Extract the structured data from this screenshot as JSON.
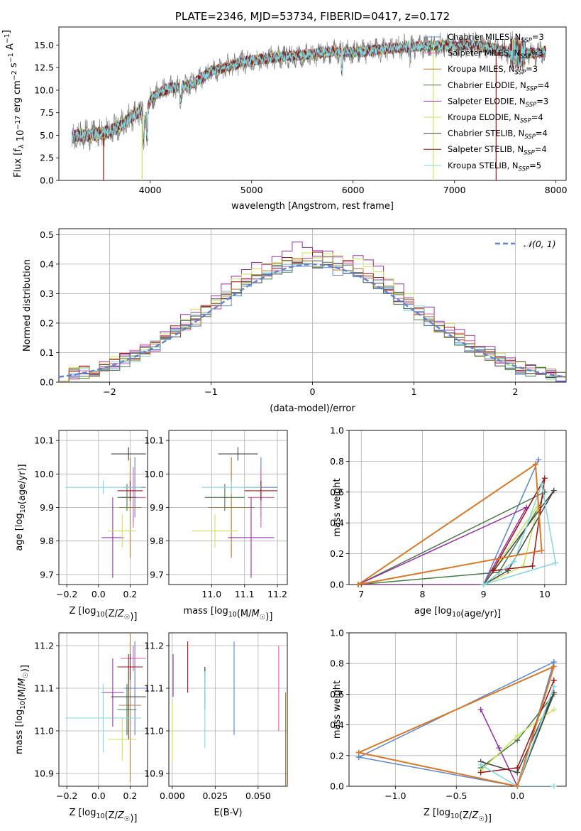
{
  "colors": {
    "Chabrier MILES": "#5b84d6",
    "Salpeter MILES": "#e05aa6",
    "Kroupa MILES": "#b07a30",
    "Chabrier ELODIE": "#4a7a4a",
    "Salpeter ELODIE": "#9b2fae",
    "Kroupa ELODIE": "#c8e65a",
    "Chabrier STELIB": "#444444",
    "Salpeter STELIB": "#a01010",
    "Kroupa STELIB": "#80d8e0",
    "sdss_spectrum": "#808080",
    "orange_series": "#e07820"
  },
  "chart_data": [
    {
      "type": "line",
      "title": "PLATE=2346, MJD=53734, FIBERID=0417, z=0.172",
      "xlabel": "wavelength [Angstrom, rest frame]",
      "ylabel": "Flux [f_λ 10^{-17} erg cm^{-2} s^{-1} A^{-1}]",
      "xlim": [
        3100,
        8100
      ],
      "ylim": [
        0,
        17
      ],
      "x_ticks": [
        4000,
        5000,
        6000,
        7000,
        8000
      ],
      "y_ticks": [
        0.0,
        2.5,
        5.0,
        7.5,
        10.0,
        12.5,
        15.0
      ],
      "grid": false,
      "legend_position": "top-right",
      "legend": [
        {
          "name": "Chabrier MILES",
          "nssp": "3"
        },
        {
          "name": "Salpeter MILES",
          "nssp": "3"
        },
        {
          "name": "Kroupa MILES",
          "nssp": "3"
        },
        {
          "name": "Chabrier ELODIE",
          "nssp": "4"
        },
        {
          "name": "Salpeter ELODIE",
          "nssp": "3"
        },
        {
          "name": "Kroupa ELODIE",
          "nssp": "4"
        },
        {
          "name": "Chabrier STELIB",
          "nssp": "4"
        },
        {
          "name": "Salpeter STELIB",
          "nssp": "4"
        },
        {
          "name": "Kroupa STELIB",
          "nssp": "5"
        }
      ],
      "spectrum_envelope": {
        "x": [
          3230,
          3300,
          3400,
          3500,
          3600,
          3700,
          3800,
          3900,
          3950,
          4000,
          4100,
          4200,
          4300,
          4400,
          4500,
          4600,
          4700,
          4800,
          4900,
          5000,
          5200,
          5400,
          5600,
          5800,
          6000,
          6200,
          6400,
          6600,
          6800,
          7000,
          7200,
          7400,
          7600,
          7800,
          7900
        ],
        "y": [
          4.8,
          5.0,
          5.0,
          5.2,
          5.4,
          6.0,
          6.9,
          7.7,
          6.5,
          9.0,
          9.8,
          10.3,
          10.3,
          10.6,
          11.3,
          12.1,
          12.4,
          12.7,
          13.1,
          13.3,
          13.6,
          13.8,
          14.0,
          14.3,
          14.2,
          14.4,
          14.7,
          14.8,
          14.9,
          14.9,
          15.0,
          14.6,
          14.0,
          14.1,
          14.3
        ]
      },
      "model_edges": [
        {
          "series": "Salpeter STELIB",
          "x": 3540
        },
        {
          "series": "Kroupa ELODIE",
          "x": 3920
        },
        {
          "series": "Kroupa ELODIE",
          "x": 6790
        },
        {
          "series": "Salpeter STELIB",
          "x": 7410
        }
      ]
    },
    {
      "type": "histogram",
      "xlabel": "(data-model)/error",
      "ylabel": "Normed distribution",
      "xlim": [
        -2.5,
        2.5
      ],
      "ylim": [
        0,
        0.52
      ],
      "x_ticks": [
        -2,
        -1,
        0,
        1,
        2
      ],
      "y_ticks": [
        0.0,
        0.1,
        0.2,
        0.3,
        0.4,
        0.5
      ],
      "grid": true,
      "legend_position": "top-right",
      "reference_curve": {
        "label": "𝒩(0, 1)",
        "mean": 0,
        "sigma": 1
      },
      "bin_width": 0.1,
      "bin_start": -2.5,
      "histogram_series": [
        {
          "series": "Salpeter ELODIE",
          "peak": 0.5
        },
        {
          "series": "Kroupa ELODIE",
          "peak": 0.48
        },
        {
          "series": "Salpeter STELIB",
          "peak": 0.46
        },
        {
          "series": "Kroupa STELIB",
          "peak": 0.45
        },
        {
          "series": "Salpeter MILES",
          "peak": 0.46
        },
        {
          "series": "Chabrier STELIB",
          "peak": 0.45
        },
        {
          "series": "Chabrier MILES",
          "peak": 0.43
        },
        {
          "series": "Chabrier ELODIE",
          "peak": 0.44
        },
        {
          "series": "Kroupa MILES",
          "peak": 0.45
        }
      ]
    },
    {
      "type": "errorbar",
      "xlabel": "Z [log10(Z/Z☉)]",
      "ylabel": "age  [log10(age/yr)]",
      "xlim": [
        -0.25,
        0.31
      ],
      "ylim": [
        9.67,
        10.13
      ],
      "x_ticks": [
        -0.2,
        0.0,
        0.2
      ],
      "x_tick_labels": [
        "−0.2",
        "0.0",
        "0.2"
      ],
      "y_ticks": [
        9.7,
        9.8,
        9.9,
        10.0,
        10.1
      ],
      "grid": true,
      "points": [
        {
          "series": "Chabrier MILES",
          "x": 0.23,
          "xerr": 0.07,
          "y": 9.96,
          "yerr": 0.09
        },
        {
          "series": "Salpeter MILES",
          "x": 0.22,
          "xerr": 0.08,
          "y": 9.93,
          "yerr": 0.09
        },
        {
          "series": "Kroupa MILES",
          "x": 0.2,
          "xerr": 0.07,
          "y": 9.9,
          "yerr": 0.15
        },
        {
          "series": "Chabrier ELODIE",
          "x": 0.18,
          "xerr": 0.06,
          "y": 9.93,
          "yerr": 0.04
        },
        {
          "series": "Salpeter ELODIE",
          "x": 0.09,
          "xerr": 0.07,
          "y": 9.81,
          "yerr": 0.12
        },
        {
          "series": "Kroupa ELODIE",
          "x": 0.15,
          "xerr": 0.09,
          "y": 9.83,
          "yerr": 0.05
        },
        {
          "series": "Chabrier STELIB",
          "x": 0.19,
          "xerr": 0.11,
          "y": 10.06,
          "yerr": 0.02
        },
        {
          "series": "Salpeter STELIB",
          "x": 0.2,
          "xerr": 0.08,
          "y": 9.95,
          "yerr": 0.03
        },
        {
          "series": "Kroupa STELIB",
          "x": 0.03,
          "xerr": 0.24,
          "y": 9.96,
          "yerr": 0.02
        }
      ]
    },
    {
      "type": "errorbar",
      "xlabel": "mass [log10(M/M☉)]",
      "ylabel": "",
      "xlim": [
        10.87,
        11.23
      ],
      "ylim": [
        9.67,
        10.13
      ],
      "x_ticks": [
        11.0,
        11.1,
        11.2
      ],
      "y_ticks": [
        9.7,
        9.8,
        9.9,
        10.0,
        10.1
      ],
      "grid": true,
      "points": [
        {
          "series": "Chabrier MILES",
          "x": 11.15,
          "xerr": 0.05,
          "y": 9.96,
          "yerr": 0.09
        },
        {
          "series": "Salpeter MILES",
          "x": 11.15,
          "xerr": 0.04,
          "y": 9.93,
          "yerr": 0.09
        },
        {
          "series": "Kroupa MILES",
          "x": 11.06,
          "xerr": 0.07,
          "y": 9.9,
          "yerr": 0.15
        },
        {
          "series": "Chabrier ELODIE",
          "x": 11.04,
          "xerr": 0.06,
          "y": 9.93,
          "yerr": 0.04
        },
        {
          "series": "Salpeter ELODIE",
          "x": 11.12,
          "xerr": 0.07,
          "y": 9.81,
          "yerr": 0.12
        },
        {
          "series": "Kroupa ELODIE",
          "x": 11.01,
          "xerr": 0.07,
          "y": 9.83,
          "yerr": 0.05
        },
        {
          "series": "Chabrier STELIB",
          "x": 11.08,
          "xerr": 0.06,
          "y": 10.06,
          "yerr": 0.02
        },
        {
          "series": "Salpeter STELIB",
          "x": 11.15,
          "xerr": 0.05,
          "y": 9.95,
          "yerr": 0.03
        },
        {
          "series": "Kroupa STELIB",
          "x": 11.06,
          "xerr": 0.09,
          "y": 9.96,
          "yerr": 0.02
        }
      ]
    },
    {
      "type": "line",
      "xlabel": "age  [log10(age/yr)]",
      "ylabel": "mass weight",
      "xlim": [
        6.8,
        10.35
      ],
      "ylim": [
        0,
        1.0
      ],
      "x_ticks": [
        7,
        8,
        9,
        10
      ],
      "y_ticks": [
        0.0,
        0.2,
        0.4,
        0.6,
        0.8,
        1.0
      ],
      "grid": true,
      "series": [
        {
          "name": "Chabrier MILES",
          "x": [
            9.0,
            9.9,
            9.0
          ],
          "y": [
            0.0,
            0.81,
            0.0
          ]
        },
        {
          "name": "Salpeter MILES",
          "x": [
            6.95,
            9.85,
            9.95,
            6.95
          ],
          "y": [
            0.0,
            0.78,
            0.22,
            0.0
          ]
        },
        {
          "name": "Kroupa MILES",
          "x": [
            6.95,
            9.85,
            9.95,
            6.95
          ],
          "y": [
            0.0,
            0.78,
            0.22,
            0.0
          ]
        },
        {
          "name": "Chabrier ELODIE",
          "x": [
            6.95,
            9.25,
            9.9,
            10.0,
            6.95
          ],
          "y": [
            0.0,
            0.08,
            0.5,
            0.6,
            0.0
          ]
        },
        {
          "name": "Salpeter ELODIE",
          "x": [
            6.95,
            9.7,
            9.0,
            6.95
          ],
          "y": [
            0.0,
            0.5,
            0.0,
            0.0
          ]
        },
        {
          "name": "Kroupa ELODIE",
          "x": [
            9.0,
            9.65,
            9.9,
            9.0
          ],
          "y": [
            0.0,
            0.12,
            0.52,
            0.0
          ]
        },
        {
          "name": "Chabrier STELIB",
          "x": [
            9.0,
            9.4,
            10.15,
            9.0
          ],
          "y": [
            0.0,
            0.09,
            0.61,
            0.0
          ]
        },
        {
          "name": "Salpeter STELIB",
          "x": [
            9.15,
            9.8,
            10.0,
            9.15
          ],
          "y": [
            0.09,
            0.12,
            0.69,
            0.09
          ]
        },
        {
          "name": "Kroupa STELIB",
          "x": [
            9.0,
            9.5,
            9.95,
            10.18,
            9.0
          ],
          "y": [
            0.0,
            0.15,
            0.65,
            0.14,
            0.0
          ]
        },
        {
          "name": "orange_series",
          "x": [
            6.95,
            9.85,
            9.95,
            6.95
          ],
          "y": [
            0.0,
            0.78,
            0.22,
            0.0
          ]
        }
      ]
    },
    {
      "type": "errorbar",
      "xlabel": "Z [log10(Z/Z☉)]",
      "ylabel": "mass [log10(M/M☉)]",
      "xlim": [
        -0.25,
        0.31
      ],
      "ylim": [
        10.87,
        11.23
      ],
      "x_ticks": [
        -0.2,
        0.0,
        0.2
      ],
      "x_tick_labels": [
        "−0.2",
        "0.0",
        "0.2"
      ],
      "y_ticks": [
        10.9,
        11.0,
        11.1,
        11.2
      ],
      "grid": true,
      "points": [
        {
          "series": "Chabrier MILES",
          "x": 0.23,
          "xerr": 0.07,
          "y": 11.1,
          "yerr": 0.11
        },
        {
          "series": "Salpeter MILES",
          "x": 0.22,
          "xerr": 0.08,
          "y": 11.17,
          "yerr": 0.03
        },
        {
          "series": "Kroupa MILES",
          "x": 0.2,
          "xerr": 0.07,
          "y": 11.06,
          "yerr": 0.18
        },
        {
          "series": "Chabrier ELODIE",
          "x": 0.18,
          "xerr": 0.06,
          "y": 11.05,
          "yerr": 0.06
        },
        {
          "series": "Salpeter ELODIE",
          "x": 0.09,
          "xerr": 0.07,
          "y": 11.09,
          "yerr": 0.08
        },
        {
          "series": "Kroupa ELODIE",
          "x": 0.15,
          "xerr": 0.09,
          "y": 10.98,
          "yerr": 0.05
        },
        {
          "series": "Chabrier STELIB",
          "x": 0.19,
          "xerr": 0.11,
          "y": 11.08,
          "yerr": 0.1
        },
        {
          "series": "Salpeter STELIB",
          "x": 0.2,
          "xerr": 0.08,
          "y": 11.15,
          "yerr": 0.03
        },
        {
          "series": "Kroupa STELIB",
          "x": 0.03,
          "xerr": 0.24,
          "y": 11.03,
          "yerr": 0.08
        }
      ]
    },
    {
      "type": "errorbar",
      "xlabel": "E(B-V)",
      "ylabel": "",
      "xlim": [
        -0.002,
        0.067
      ],
      "ylim": [
        10.87,
        11.23
      ],
      "x_ticks": [
        0.0,
        0.025,
        0.05
      ],
      "x_tick_labels": [
        "0.000",
        "0.025",
        "0.050"
      ],
      "y_ticks": [
        10.9,
        11.0,
        11.1,
        11.2
      ],
      "grid": true,
      "points": [
        {
          "series": "Chabrier MILES",
          "x": 0.036,
          "y": 11.1,
          "yerr": 0.11
        },
        {
          "series": "Salpeter MILES",
          "x": 0.062,
          "y": 11.1,
          "yerr": 0.1
        },
        {
          "series": "Kroupa MILES",
          "x": 0.066,
          "y": 10.98,
          "yerr": 0.11
        },
        {
          "series": "Chabrier ELODIE",
          "x": 0.019,
          "y": 11.1,
          "yerr": 0.05
        },
        {
          "series": "Salpeter ELODIE",
          "x": 0.0005,
          "y": 11.13,
          "yerr": 0.05
        },
        {
          "series": "Kroupa ELODIE",
          "x": 0.0,
          "y": 11.0,
          "yerr": 0.07
        },
        {
          "series": "Chabrier STELIB",
          "x": 0.019,
          "y": 11.14,
          "yerr": 0.01
        },
        {
          "series": "Salpeter STELIB",
          "x": 0.009,
          "y": 11.15,
          "yerr": 0.06
        },
        {
          "series": "Kroupa STELIB",
          "x": 0.019,
          "y": 11.05,
          "yerr": 0.09
        }
      ]
    },
    {
      "type": "line",
      "xlabel": "Z [log10(Z/Z☉)]",
      "ylabel": "mass weight",
      "xlim": [
        -1.38,
        0.4
      ],
      "ylim": [
        0,
        1.0
      ],
      "x_ticks": [
        -1.0,
        -0.5,
        0.0
      ],
      "x_tick_labels": [
        "−1.0",
        "−0.5",
        "0.0"
      ],
      "y_ticks": [
        0.0,
        0.2,
        0.4,
        0.6,
        0.8,
        1.0
      ],
      "grid": true,
      "series": [
        {
          "name": "Chabrier MILES",
          "x": [
            -1.3,
            0.3,
            0.0,
            -1.3
          ],
          "y": [
            0.19,
            0.81,
            0.0,
            0.19
          ]
        },
        {
          "name": "Kroupa MILES",
          "x": [
            -1.3,
            0.3,
            0.0,
            -1.3
          ],
          "y": [
            0.22,
            0.78,
            0.0,
            0.22
          ]
        },
        {
          "name": "Salpeter ELODIE",
          "x": [
            -0.3,
            -0.15,
            0.0
          ],
          "y": [
            0.5,
            0.25,
            0.0
          ]
        },
        {
          "name": "Chabrier ELODIE",
          "x": [
            -0.3,
            0.0,
            0.3,
            0.0
          ],
          "y": [
            0.12,
            0.3,
            0.6,
            0.0
          ]
        },
        {
          "name": "Kroupa ELODIE",
          "x": [
            -0.3,
            0.0,
            0.3
          ],
          "y": [
            0.1,
            0.33,
            0.5
          ]
        },
        {
          "name": "Chabrier STELIB",
          "x": [
            -0.3,
            0.0,
            0.3,
            0.0
          ],
          "y": [
            0.16,
            0.09,
            0.61,
            0.0
          ]
        },
        {
          "name": "Salpeter STELIB",
          "x": [
            -0.3,
            0.0,
            0.3
          ],
          "y": [
            0.09,
            0.12,
            0.69
          ]
        },
        {
          "name": "Kroupa STELIB",
          "x": [
            -0.3,
            0.0,
            0.3,
            0.0,
            0.3
          ],
          "y": [
            0.14,
            0.0,
            0.65,
            0.0,
            0.0
          ]
        },
        {
          "name": "orange_series",
          "x": [
            -1.3,
            0.3,
            0.0,
            -1.3
          ],
          "y": [
            0.22,
            0.78,
            0.0,
            0.22
          ]
        }
      ]
    }
  ]
}
